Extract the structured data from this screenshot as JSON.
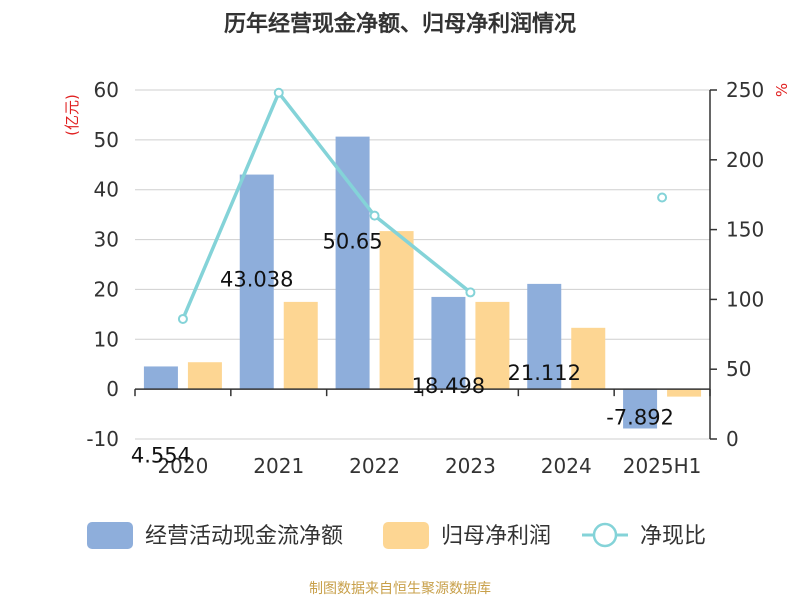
{
  "page": {
    "title": "历年经营现金净额、归母净利润情况",
    "source": "制图数据来自恒生聚源数据库"
  },
  "chart_data": {
    "type": "bar",
    "title": "历年经营现金净额、归母净利润情况",
    "categories": [
      "2020",
      "2021",
      "2022",
      "2023",
      "2024",
      "2025H1"
    ],
    "ylabel_left": "(亿元)",
    "ylabel_right": "%",
    "ylim_left": [
      -10,
      60
    ],
    "yticks_left": [
      -10,
      0,
      10,
      20,
      30,
      40,
      50,
      60
    ],
    "ylim_right": [
      0,
      250
    ],
    "yticks_right": [
      0,
      50,
      100,
      150,
      200,
      250
    ],
    "grid": true,
    "legend_position": "bottom",
    "series": [
      {
        "name": "经营活动现金流净额",
        "type": "bar",
        "axis": "left",
        "color": "#8eaedb",
        "values": [
          4.554,
          43.038,
          50.65,
          18.498,
          21.112,
          -7.892
        ],
        "labels": [
          "4.554",
          "43.038",
          "50.65",
          "18.498",
          "21.112",
          "-7.892"
        ]
      },
      {
        "name": "归母净利润",
        "type": "bar",
        "axis": "left",
        "color": "#fdd693",
        "values": [
          5.4,
          17.5,
          31.7,
          17.5,
          12.3,
          -1.5
        ]
      },
      {
        "name": "净现比",
        "type": "line",
        "axis": "right",
        "color": "#84d3d8",
        "values": [
          86,
          248,
          160,
          105,
          null,
          173
        ]
      }
    ]
  }
}
